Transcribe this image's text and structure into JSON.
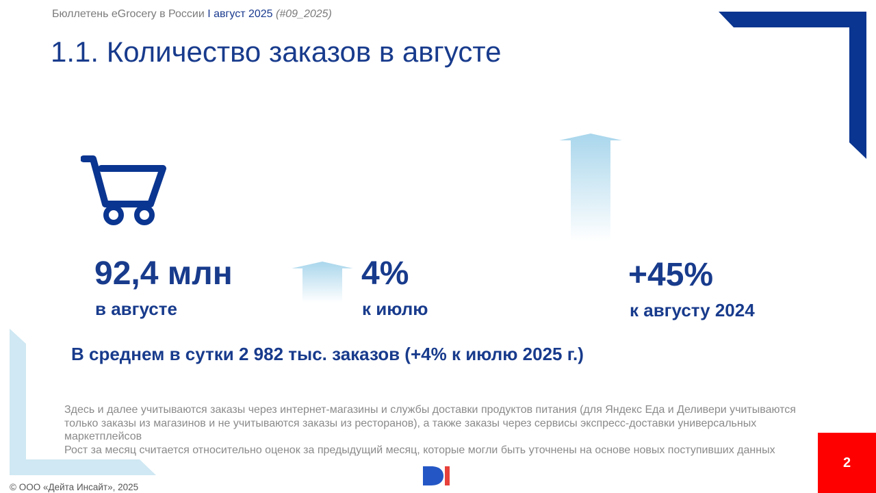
{
  "header": {
    "bulletin": "Бюллетень eGrocery в России",
    "separator": "I",
    "period": "август 2025",
    "issue_open": "(",
    "issue": "#09_2025",
    "issue_close": ")"
  },
  "title": "1.1. Количество заказов в августе",
  "metrics": [
    {
      "value": "92,4 млн",
      "label": "в августе",
      "icon": "shopping-cart-icon"
    },
    {
      "value": "4%",
      "label": "к июлю",
      "icon": "up-arrow-icon"
    },
    {
      "value": "+45%",
      "label": "к августу 2024",
      "icon": "up-arrow-icon"
    }
  ],
  "summary": "В среднем в сутки 2 982 тыс. заказов (+4% к июлю 2025 г.)",
  "footnotes": [
    "Здесь и далее учитываются заказы через интернет-магазины и службы доставки продуктов питания (для Яндекс Еда и Деливери учитываются только заказы из магазинов и не учитываются заказы из ресторанов), а также заказы через сервисы экспресс-доставки универсальных маркетплейсов",
    "Рост за месяц считается относительно оценок за предыдущий месяц, которые могли быть уточнены на основе новых поступивших данных"
  ],
  "footer": {
    "copyright": "© ООО «Дейта Инсайт», 2025",
    "logo": "di-logo",
    "page_number": "2"
  },
  "colors": {
    "brand_blue": "#183b8c",
    "deco_navy": "#0a3590",
    "deco_light_blue": "#cfe8f3",
    "arrow_blue": "#a9d6ec",
    "page_badge": "#ff0000",
    "logo_red": "#e8413c"
  }
}
